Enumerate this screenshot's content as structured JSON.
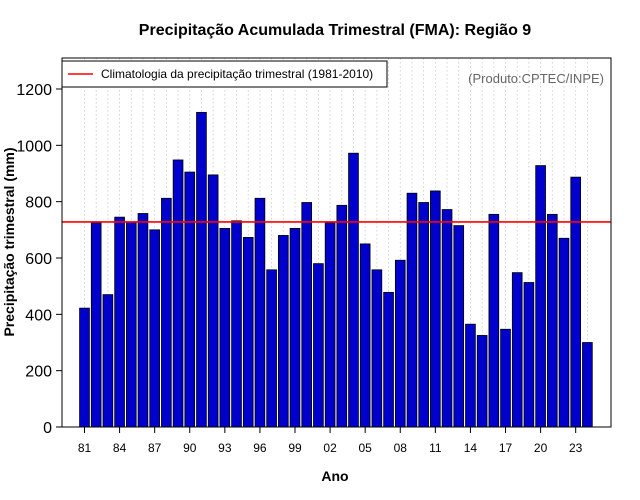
{
  "chart_data": {
    "type": "bar",
    "title": "Precipitação Acumulada Trimestral (FMA): Região 9",
    "xlabel": "Ano",
    "ylabel": "Precipitação trimestral (mm)",
    "credit": "(Produto:CPTEC/INPE)",
    "ylim": [
      0,
      1310
    ],
    "yticks": [
      0,
      200,
      400,
      600,
      800,
      1000,
      1200
    ],
    "years": [
      "81",
      "82",
      "83",
      "84",
      "85",
      "86",
      "87",
      "88",
      "89",
      "90",
      "91",
      "92",
      "93",
      "94",
      "95",
      "96",
      "97",
      "98",
      "99",
      "00",
      "01",
      "02",
      "03",
      "04",
      "05",
      "06",
      "07",
      "08",
      "09",
      "10",
      "11",
      "12",
      "13",
      "14",
      "15",
      "16",
      "17",
      "18",
      "19",
      "20",
      "21",
      "22",
      "23",
      "24"
    ],
    "xtick_labels": [
      "81",
      "84",
      "87",
      "90",
      "93",
      "96",
      "99",
      "02",
      "05",
      "08",
      "11",
      "14",
      "17",
      "20",
      "23"
    ],
    "values": [
      422,
      725,
      470,
      745,
      728,
      758,
      700,
      812,
      948,
      905,
      1117,
      895,
      705,
      732,
      673,
      812,
      558,
      680,
      705,
      797,
      580,
      725,
      787,
      972,
      650,
      558,
      478,
      592,
      830,
      797,
      838,
      772,
      715,
      365,
      325,
      755,
      347,
      548,
      513,
      928,
      755,
      670,
      887,
      300
    ],
    "climatology": {
      "label": "Climatologia da precipitação trimestral (1981-2010)",
      "value": 728
    },
    "legend_position": "top-left",
    "grid": "vertical dotted",
    "colors": {
      "bar_fill": "#0000cc",
      "bar_edge": "#000000",
      "climatology_line": "#ff0000",
      "grid": "#c8c8c8",
      "credit": "#666666"
    }
  }
}
